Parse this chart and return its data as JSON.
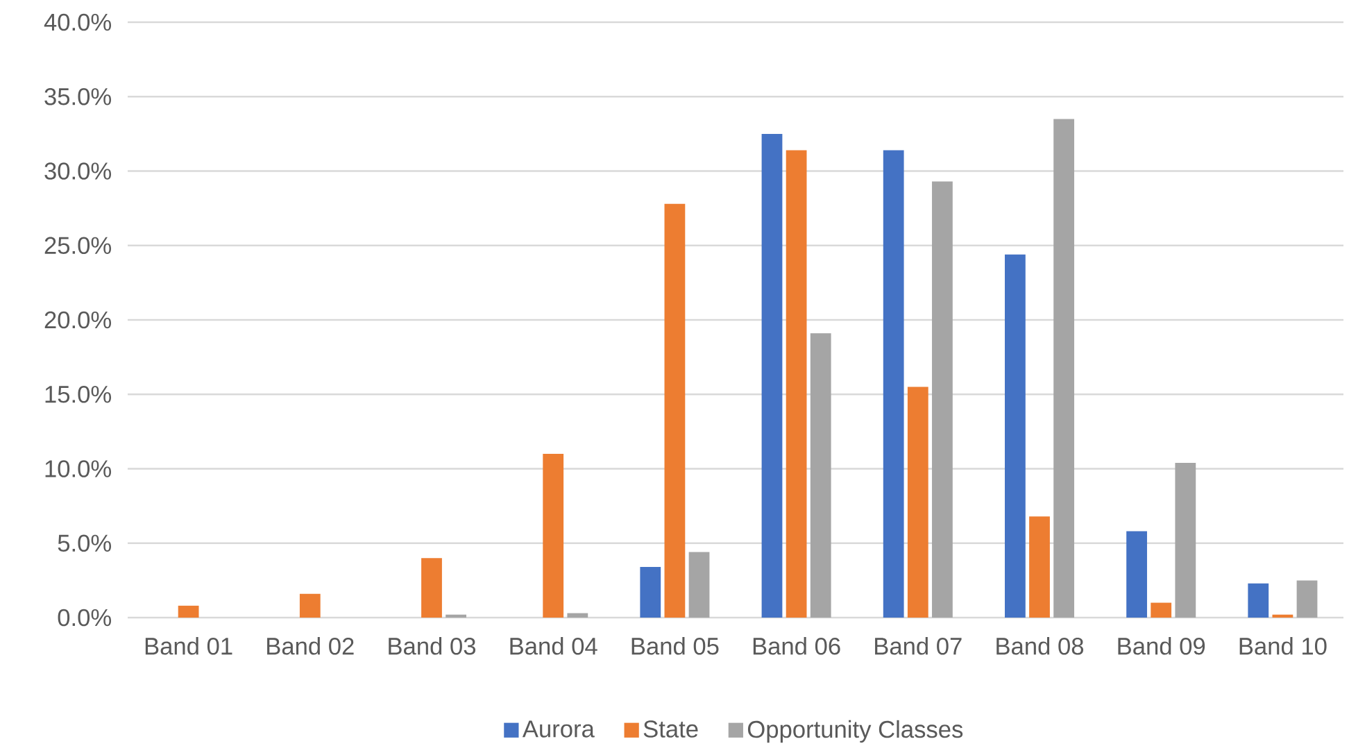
{
  "chart_data": {
    "type": "bar",
    "categories": [
      "Band 01",
      "Band 02",
      "Band 03",
      "Band 04",
      "Band 05",
      "Band 06",
      "Band 07",
      "Band 08",
      "Band 09",
      "Band 10"
    ],
    "series": [
      {
        "name": "Aurora",
        "color": "#4472c4",
        "values": [
          0,
          0,
          0,
          0,
          3.4,
          32.5,
          31.4,
          24.4,
          5.8,
          2.3
        ]
      },
      {
        "name": "State",
        "color": "#ed7d31",
        "values": [
          0.8,
          1.6,
          4.0,
          11.0,
          27.8,
          31.4,
          15.5,
          6.8,
          1.0,
          0.2
        ]
      },
      {
        "name": "Opportunity Classes",
        "color": "#a5a5a5",
        "values": [
          0,
          0,
          0.2,
          0.3,
          4.4,
          19.1,
          29.3,
          33.5,
          10.4,
          2.5
        ]
      }
    ],
    "ylim": [
      0,
      40
    ],
    "yticks": [
      {
        "value": 0,
        "label": "0.0%"
      },
      {
        "value": 5,
        "label": "5.0%"
      },
      {
        "value": 10,
        "label": "10.0%"
      },
      {
        "value": 15,
        "label": "15.0%"
      },
      {
        "value": 20,
        "label": "20.0%"
      },
      {
        "value": 25,
        "label": "25.0%"
      },
      {
        "value": 30,
        "label": "30.0%"
      },
      {
        "value": 35,
        "label": "35.0%"
      },
      {
        "value": 40,
        "label": "40.0%"
      }
    ],
    "grid": "y",
    "legend": "bottom"
  }
}
